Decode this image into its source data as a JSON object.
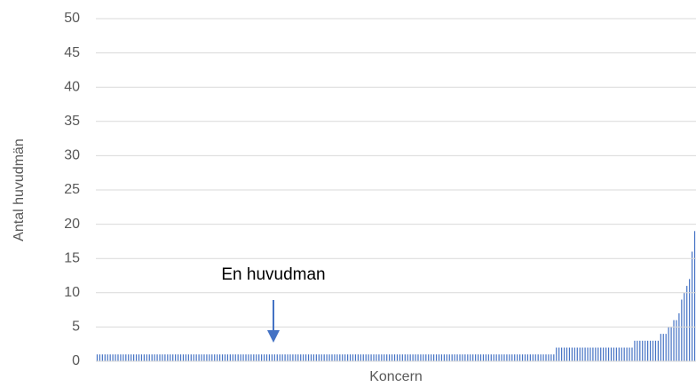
{
  "chart_data": {
    "type": "bar",
    "x_label": "Koncern",
    "y_label": "Antal huvudmän",
    "annotation": "En huvudman",
    "categories": [
      null,
      null,
      null,
      null,
      null,
      null,
      null,
      null,
      null,
      null,
      null,
      null,
      null,
      null,
      null,
      null,
      null,
      null,
      null,
      null,
      null,
      null,
      null,
      null,
      null,
      null,
      null,
      null,
      null,
      null,
      null,
      null,
      null,
      null,
      null,
      null,
      null,
      null,
      null,
      null,
      null,
      null,
      null,
      null,
      null,
      null,
      null,
      null,
      null,
      null,
      null,
      null,
      null,
      null,
      null,
      null,
      null,
      null,
      null,
      null,
      null,
      null,
      null,
      null,
      null,
      null,
      null,
      null,
      null,
      null,
      null,
      null,
      null,
      null,
      null,
      null,
      null,
      null,
      null,
      null,
      null,
      null,
      null,
      null,
      null,
      null,
      null,
      null,
      null,
      null,
      null,
      null,
      null,
      null,
      null,
      null,
      null,
      null,
      null,
      null,
      null,
      null,
      null,
      null,
      null,
      null,
      null,
      null,
      null,
      null,
      null,
      null,
      null,
      null,
      null,
      null,
      null,
      null,
      null,
      null,
      null,
      null,
      null,
      null,
      null,
      null,
      null,
      null,
      null,
      null,
      null,
      null,
      null,
      null,
      null,
      null,
      null,
      null,
      null,
      null,
      null,
      null,
      null,
      null,
      null,
      null,
      null,
      null,
      null,
      null,
      null,
      null,
      null,
      null,
      null,
      null,
      null,
      null,
      null,
      null,
      null,
      null,
      null,
      null,
      null,
      null,
      null,
      null,
      null,
      null,
      null,
      null,
      null,
      null,
      null,
      null,
      null,
      null,
      null,
      null,
      null,
      null,
      null,
      null,
      null,
      null,
      null,
      null,
      null,
      null,
      null,
      null,
      null,
      null,
      null,
      null,
      null,
      null,
      null,
      null,
      null,
      null,
      null,
      null,
      null,
      null,
      null,
      null,
      null,
      null,
      null,
      null,
      null,
      null,
      null,
      null,
      null,
      null,
      null,
      null,
      null,
      null,
      null,
      null,
      null,
      null,
      null,
      null,
      null,
      null
    ],
    "values": [
      1,
      1,
      1,
      1,
      1,
      1,
      1,
      1,
      1,
      1,
      1,
      1,
      1,
      1,
      1,
      1,
      1,
      1,
      1,
      1,
      1,
      1,
      1,
      1,
      1,
      1,
      1,
      1,
      1,
      1,
      1,
      1,
      1,
      1,
      1,
      1,
      1,
      1,
      1,
      1,
      1,
      1,
      1,
      1,
      1,
      1,
      1,
      1,
      1,
      1,
      1,
      1,
      1,
      1,
      1,
      1,
      1,
      1,
      1,
      1,
      1,
      1,
      1,
      1,
      1,
      1,
      1,
      1,
      1,
      1,
      1,
      1,
      1,
      1,
      1,
      1,
      1,
      1,
      1,
      1,
      1,
      1,
      1,
      1,
      1,
      1,
      1,
      1,
      1,
      1,
      1,
      1,
      1,
      1,
      1,
      1,
      1,
      1,
      1,
      1,
      1,
      1,
      1,
      1,
      1,
      1,
      1,
      1,
      1,
      1,
      1,
      1,
      1,
      1,
      1,
      1,
      1,
      1,
      1,
      1,
      1,
      1,
      1,
      1,
      1,
      1,
      1,
      1,
      1,
      1,
      1,
      1,
      1,
      1,
      1,
      1,
      1,
      1,
      1,
      1,
      1,
      1,
      1,
      1,
      1,
      1,
      1,
      1,
      1,
      1,
      1,
      1,
      1,
      1,
      1,
      1,
      1,
      1,
      1,
      1,
      1,
      1,
      1,
      1,
      1,
      1,
      1,
      1,
      1,
      1,
      1,
      1,
      1,
      1,
      1,
      1,
      2,
      2,
      2,
      2,
      2,
      2,
      2,
      2,
      2,
      2,
      2,
      2,
      2,
      2,
      2,
      2,
      2,
      2,
      2,
      2,
      2,
      2,
      2,
      2,
      2,
      2,
      2,
      2,
      2,
      2,
      3,
      3,
      3,
      3,
      3,
      3,
      3,
      3,
      3,
      3,
      4,
      4,
      4,
      5,
      5,
      6,
      6,
      7,
      9,
      10,
      11,
      12,
      16,
      19
    ],
    "color": "#4472c4",
    "ylim": [
      0,
      50
    ],
    "yticks": [
      0,
      5,
      10,
      15,
      20,
      25,
      30,
      35,
      40,
      45,
      50
    ],
    "grid": true
  }
}
